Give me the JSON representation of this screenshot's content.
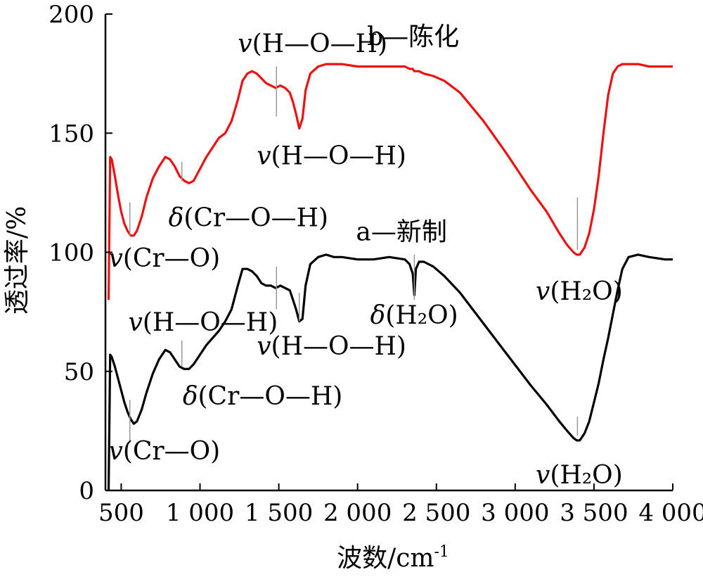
{
  "chart_data": {
    "type": "line",
    "xlabel": "波数/cm",
    "xlabel_sup": "-1",
    "ylabel": "透过率/%",
    "xlim": [
      400,
      4000
    ],
    "ylim": [
      0,
      200
    ],
    "xticks": [
      500,
      1000,
      1500,
      2000,
      2500,
      3000,
      3500,
      4000
    ],
    "xtick_labels": [
      "500",
      "1 000",
      "1 500",
      "2 000",
      "2 500",
      "3 000",
      "3 500",
      "4 000"
    ],
    "yticks": [
      0,
      50,
      100,
      150,
      200
    ],
    "ytick_labels": [
      "0",
      "50",
      "100",
      "150",
      "200"
    ],
    "grid": false,
    "series": [
      {
        "name": "a—新制",
        "color": "#000000",
        "x": [
          420,
          430,
          440,
          460,
          480,
          500,
          520,
          540,
          560,
          580,
          600,
          630,
          660,
          700,
          740,
          780,
          810,
          840,
          870,
          900,
          930,
          960,
          1000,
          1040,
          1080,
          1120,
          1160,
          1200,
          1240,
          1270,
          1300,
          1330,
          1360,
          1390,
          1420,
          1450,
          1480,
          1510,
          1540,
          1570,
          1590,
          1610,
          1630,
          1650,
          1670,
          1700,
          1750,
          1800,
          1850,
          1900,
          2000,
          2100,
          2200,
          2300,
          2330,
          2350,
          2360,
          2370,
          2390,
          2420,
          2480,
          2550,
          2650,
          2800,
          2950,
          3100,
          3200,
          3280,
          3330,
          3370,
          3390,
          3410,
          3440,
          3470,
          3500,
          3530,
          3560,
          3590,
          3620,
          3650,
          3680,
          3720,
          3780,
          3850,
          3950,
          4000
        ],
        "y": [
          0,
          57,
          56,
          52,
          47,
          42,
          37,
          33,
          30,
          28,
          29,
          34,
          41,
          49,
          55,
          59,
          58,
          55,
          52,
          51,
          51,
          53,
          57,
          61,
          64,
          67,
          71,
          76,
          86,
          93,
          93,
          92,
          90,
          87,
          86,
          86,
          85,
          86,
          85,
          84,
          80,
          76,
          71,
          72,
          86,
          95,
          98,
          99,
          98,
          98,
          97,
          97,
          98,
          97,
          95,
          91,
          82,
          93,
          96,
          96,
          94,
          90,
          83,
          70,
          57,
          44,
          36,
          29,
          25,
          22,
          21,
          21,
          24,
          29,
          37,
          45,
          55,
          64,
          74,
          84,
          93,
          98,
          99,
          98,
          97,
          97
        ]
      },
      {
        "name": "b—陈化",
        "color": "#ee1111",
        "x": [
          420,
          430,
          440,
          460,
          480,
          500,
          520,
          540,
          560,
          580,
          600,
          630,
          660,
          700,
          740,
          780,
          810,
          840,
          870,
          900,
          930,
          960,
          1000,
          1040,
          1080,
          1120,
          1160,
          1200,
          1240,
          1270,
          1300,
          1330,
          1360,
          1390,
          1420,
          1450,
          1480,
          1510,
          1540,
          1570,
          1590,
          1610,
          1630,
          1650,
          1670,
          1700,
          1750,
          1800,
          1850,
          1900,
          2000,
          2100,
          2200,
          2300,
          2330,
          2350,
          2360,
          2370,
          2390,
          2420,
          2480,
          2550,
          2650,
          2800,
          2950,
          3100,
          3200,
          3280,
          3330,
          3370,
          3390,
          3410,
          3440,
          3470,
          3500,
          3530,
          3560,
          3590,
          3620,
          3650,
          3680,
          3720,
          3780,
          3850,
          3950,
          4000
        ],
        "y": [
          80,
          140,
          139,
          132,
          124,
          117,
          112,
          109,
          107,
          107,
          109,
          115,
          123,
          131,
          136,
          140,
          139,
          136,
          132,
          130,
          129,
          130,
          135,
          140,
          144,
          148,
          150,
          155,
          164,
          172,
          175,
          176,
          175,
          173,
          171,
          170,
          169,
          170,
          169,
          167,
          163,
          158,
          152,
          156,
          168,
          175,
          178,
          179,
          179,
          179,
          178,
          178,
          178,
          178,
          177,
          177,
          176,
          176,
          176,
          175,
          174,
          172,
          167,
          155,
          141,
          126,
          117,
          108,
          103,
          100,
          99,
          99,
          102,
          108,
          118,
          132,
          150,
          166,
          175,
          178,
          179,
          179,
          179,
          178,
          178,
          178
        ]
      }
    ],
    "series_labels": [
      {
        "text": "b—陈化",
        "x": 2060,
        "y": 187
      },
      {
        "text": "a—新制",
        "x": 1990,
        "y": 105
      }
    ],
    "annotations": [
      {
        "prefix": "v",
        "text": "(H—O—H)",
        "x": 1240,
        "y": 184,
        "line_x": 1485,
        "line_y": [
          157,
          178
        ]
      },
      {
        "prefix": "v",
        "text": "(H—O—H)",
        "x": 1360,
        "y": 137,
        "line_x": null,
        "line_y": null
      },
      {
        "prefix": "δ",
        "text": "(Cr—O—H)",
        "x": 800,
        "y": 111,
        "line_x": 885,
        "line_y": [
          130,
          138
        ]
      },
      {
        "prefix": "v",
        "text": "(Cr—O)",
        "x": 420,
        "y": 94,
        "line_x": 555,
        "line_y": [
          107,
          121
        ]
      },
      {
        "prefix": "v",
        "text": "(H—O—H)",
        "x": 545,
        "y": 67,
        "line_x": 1485,
        "line_y": [
          76,
          94
        ]
      },
      {
        "prefix": "v",
        "text": "(H—O—H)",
        "x": 1360,
        "y": 57,
        "line_x": 1630,
        "line_y": [
          71,
          83
        ]
      },
      {
        "prefix": "δ",
        "text": "(H₂O)",
        "x": 2080,
        "y": 70,
        "line_x": 2360,
        "line_y": [
          80,
          99
        ]
      },
      {
        "prefix": "δ",
        "text": "(Cr—O—H)",
        "x": 890,
        "y": 36,
        "line_x": 885,
        "line_y": [
          52,
          63
        ]
      },
      {
        "prefix": "v",
        "text": "(Cr—O)",
        "x": 420,
        "y": 13,
        "line_x": 555,
        "line_y": [
          20,
          38
        ]
      },
      {
        "prefix": "v",
        "text": "(H₂O)",
        "x": 3130,
        "y": 80,
        "line_x": 3395,
        "line_y": [
          101,
          123
        ]
      },
      {
        "prefix": "v",
        "text": "(H₂O)",
        "x": 3130,
        "y": 3,
        "line_x": 3395,
        "line_y": [
          23,
          31
        ]
      }
    ]
  }
}
